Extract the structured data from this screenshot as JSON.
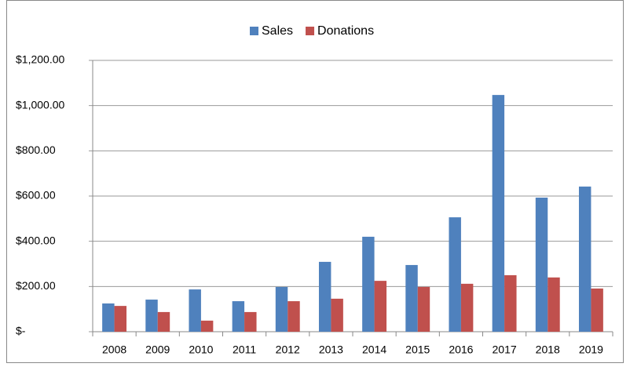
{
  "chart_data": {
    "type": "bar",
    "categories": [
      "2008",
      "2009",
      "2010",
      "2011",
      "2012",
      "2013",
      "2014",
      "2015",
      "2016",
      "2017",
      "2018",
      "2019"
    ],
    "series": [
      {
        "name": "Sales",
        "color": "#4f81bd",
        "values": [
          125,
          142,
          187,
          135,
          198,
          309,
          420,
          295,
          506,
          1047,
          593,
          642
        ]
      },
      {
        "name": "Donations",
        "color": "#c0504d",
        "values": [
          114,
          87,
          49,
          87,
          135,
          146,
          225,
          198,
          212,
          250,
          240,
          191
        ]
      }
    ],
    "ylim": [
      0,
      1200
    ],
    "yticks": [
      {
        "value": 0,
        "label": "$-"
      },
      {
        "value": 200,
        "label": "$200.00"
      },
      {
        "value": 400,
        "label": "$400.00"
      },
      {
        "value": 600,
        "label": "$600.00"
      },
      {
        "value": 800,
        "label": "$800.00"
      },
      {
        "value": 1000,
        "label": "$1,000.00"
      },
      {
        "value": 1200,
        "label": "$1,200.00"
      }
    ],
    "grid": true,
    "legend": "top"
  }
}
